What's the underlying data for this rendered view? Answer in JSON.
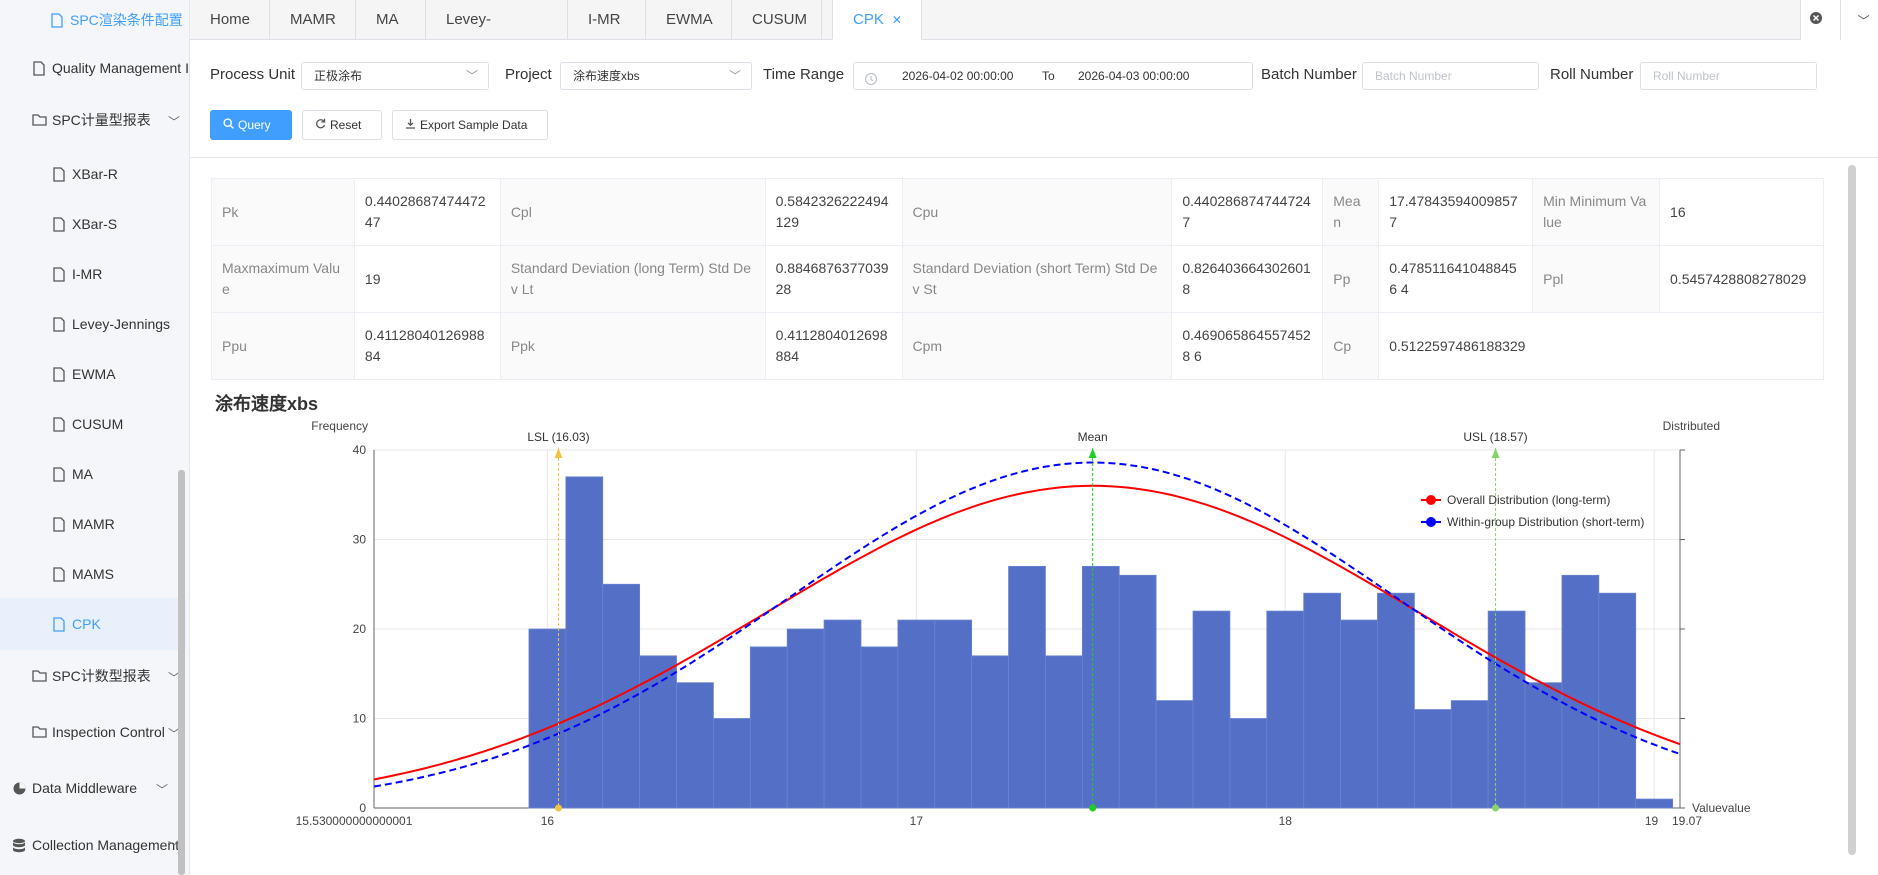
{
  "sidebar": {
    "items": [
      {
        "label": "SPC渲染条件配置",
        "active": false,
        "color_hint": "blue"
      },
      {
        "label": "Quality Management I"
      },
      {
        "label": "SPC计量型报表"
      },
      {
        "label": "XBar-R"
      },
      {
        "label": "XBar-S"
      },
      {
        "label": "I-MR"
      },
      {
        "label": "Levey-Jennings"
      },
      {
        "label": "EWMA"
      },
      {
        "label": "CUSUM"
      },
      {
        "label": "MA"
      },
      {
        "label": "MAMR"
      },
      {
        "label": "MAMS"
      },
      {
        "label": "CPK"
      },
      {
        "label": "SPC计数型报表"
      },
      {
        "label": "Inspection Control"
      },
      {
        "label": "Data Middleware"
      },
      {
        "label": "Collection Management"
      }
    ]
  },
  "tabs": {
    "items": [
      "Home",
      "MAMR",
      "MA",
      "Levey-Jennings",
      "I-MR",
      "EWMA",
      "CUSUM",
      "CPK"
    ],
    "active": "CPK"
  },
  "filters": {
    "process_unit_label": "Process Unit",
    "process_unit_value": "正极涂布",
    "project_label": "Project",
    "project_value": "涂布速度xbs",
    "time_range_label": "Time Range",
    "time_start": "2026-04-02 00:00:00",
    "time_to": "To",
    "time_end": "2026-04-03 00:00:00",
    "batch_label": "Batch Number",
    "batch_placeholder": "Batch Number",
    "roll_label": "Roll Number",
    "roll_placeholder": "Roll Number",
    "query_button": "Query",
    "reset_button": "Reset",
    "export_button": "Export Sample Data"
  },
  "stats": [
    [
      {
        "k": "Pk",
        "v": "0.4402868747447247"
      },
      {
        "k": "Cpl",
        "v": "0.5842326222494129"
      },
      {
        "k": "Cpu",
        "v": "0.4402868747447247"
      },
      {
        "k": "Mean",
        "v": "17.478435940098577"
      },
      {
        "k": "Min Minimum Value",
        "v": "16"
      }
    ],
    [
      {
        "k": "Maxmaximum Value",
        "v": "19"
      },
      {
        "k": "Standard Deviation (long Term) Std Dev Lt",
        "v": "0.884687637703928"
      },
      {
        "k": "Standard Deviation (short Term) Std Dev St",
        "v": "0.8264036643026018"
      },
      {
        "k": "Pp",
        "v": "0.4785116410488456 4"
      },
      {
        "k": "Ppl",
        "v": "0.5457428808278029"
      }
    ],
    [
      {
        "k": "Ppu",
        "v": "0.4112804012698884"
      },
      {
        "k": "Ppk",
        "v": "0.4112804012698884"
      },
      {
        "k": "Cpm",
        "v": "0.4690658645574528 6"
      },
      {
        "k": "Cp",
        "v": "0.5122597486188329"
      }
    ]
  ],
  "chart_title": "涂布速度xbs",
  "chart_data": {
    "type": "bar",
    "ylabel": "Frequency",
    "y2label": "Distributed",
    "xlabel": "Valuevalue",
    "xlim": [
      15.530000000000001,
      19.07
    ],
    "ylim": [
      0,
      40
    ],
    "y_ticks": [
      0,
      10,
      20,
      30,
      40
    ],
    "x_tick_labels": [
      "15.530000000000001",
      "16",
      "17",
      "18",
      "19",
      "19.07"
    ],
    "bin_width": 0.1,
    "bins_start": [
      15.95,
      16.05,
      16.15,
      16.25,
      16.35,
      16.45,
      16.55,
      16.65,
      16.75,
      16.85,
      16.95,
      17.05,
      17.15,
      17.25,
      17.35,
      17.45,
      17.55,
      17.65,
      17.75,
      17.85,
      17.95,
      18.05,
      18.15,
      18.25,
      18.35,
      18.45,
      18.55,
      18.65,
      18.75,
      18.85,
      18.95
    ],
    "values": [
      20,
      37,
      25,
      17,
      14,
      10,
      18,
      20,
      21,
      18,
      21,
      21,
      17,
      27,
      17,
      27,
      26,
      12,
      22,
      10,
      22,
      24,
      21,
      24,
      11,
      12,
      22,
      14,
      26,
      24,
      1
    ],
    "markers": [
      {
        "label": "LSL (16.03)",
        "x": 16.03,
        "color": "#f5c242"
      },
      {
        "label": "Mean",
        "x": 17.478,
        "color": "#22cc22"
      },
      {
        "label": "USL (18.57)",
        "x": 18.57,
        "color": "#88d46a"
      }
    ],
    "series": [
      {
        "name": "Overall Distribution (long-term)",
        "color": "#ff0000",
        "style": "solid",
        "mean": 17.478,
        "sigma": 0.8847,
        "peak": 36
      },
      {
        "name": "Within-group Distribution (short-term)",
        "color": "#0000ff",
        "style": "dashed",
        "mean": 17.478,
        "sigma": 0.8264,
        "peak": 38.6
      }
    ],
    "bar_color": "#5470c6",
    "legend_position": "top-right"
  }
}
